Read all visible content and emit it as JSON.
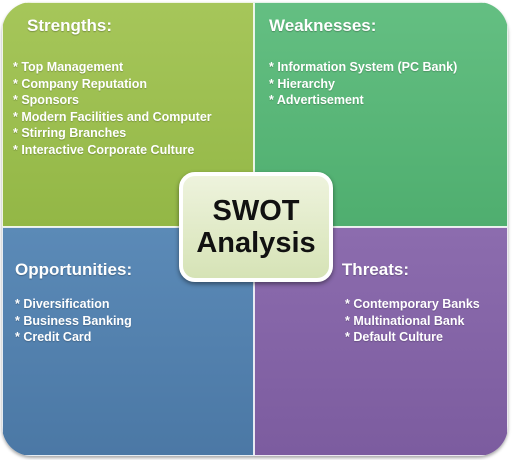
{
  "center": {
    "title": "SWOT Analysis"
  },
  "strengths": {
    "heading": "Strengths:",
    "items": [
      "* Top Management",
      "* Company Reputation",
      "* Sponsors",
      "* Modern Facilities and Computer",
      "* Stirring Branches",
      "* Interactive Corporate Culture"
    ]
  },
  "weaknesses": {
    "heading": "Weaknesses:",
    "items": [
      "* Information System (PC Bank)",
      "* Hierarchy",
      "* Advertisement"
    ]
  },
  "opportunities": {
    "heading": "Opportunities:",
    "items": [
      "* Diversification",
      "* Business Banking",
      "* Credit Card"
    ]
  },
  "threats": {
    "heading": "Threats:",
    "items": [
      "* Contemporary Banks",
      "* Multinational Bank",
      "* Default Culture"
    ]
  },
  "colors": {
    "strengths": "#9dbf51",
    "weaknesses": "#5ab678",
    "opportunities": "#5381ae",
    "threats": "#8464a6",
    "center_fill": "#e3ecc8",
    "text": "#ffffff"
  }
}
